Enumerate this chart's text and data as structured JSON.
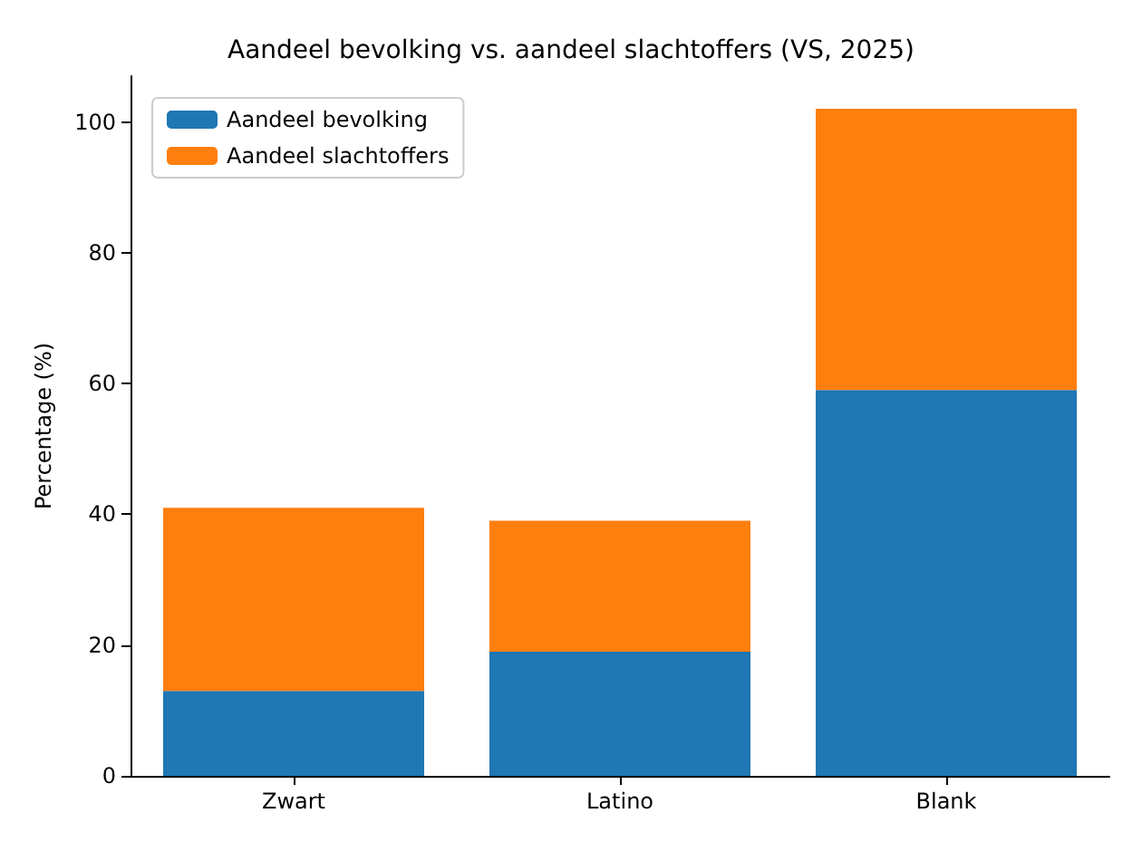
{
  "chart_data": {
    "type": "bar",
    "title": "Aandeel bevolking vs. aandeel slachtoffers (VS, 2025)",
    "ylabel": "Percentage (%)",
    "categories": [
      "Zwart",
      "Latino",
      "Blank"
    ],
    "stacked": true,
    "series": [
      {
        "name": "Aandeel bevolking",
        "color": "#1f77b4",
        "values": [
          13,
          19,
          59
        ]
      },
      {
        "name": "Aandeel slachtoffers",
        "color": "#ff7f0e",
        "values": [
          28,
          20,
          43
        ]
      }
    ],
    "ylim": [
      0,
      107
    ],
    "yticks": [
      0,
      20,
      40,
      60,
      80,
      100
    ],
    "grid": false,
    "legend": "top left"
  }
}
